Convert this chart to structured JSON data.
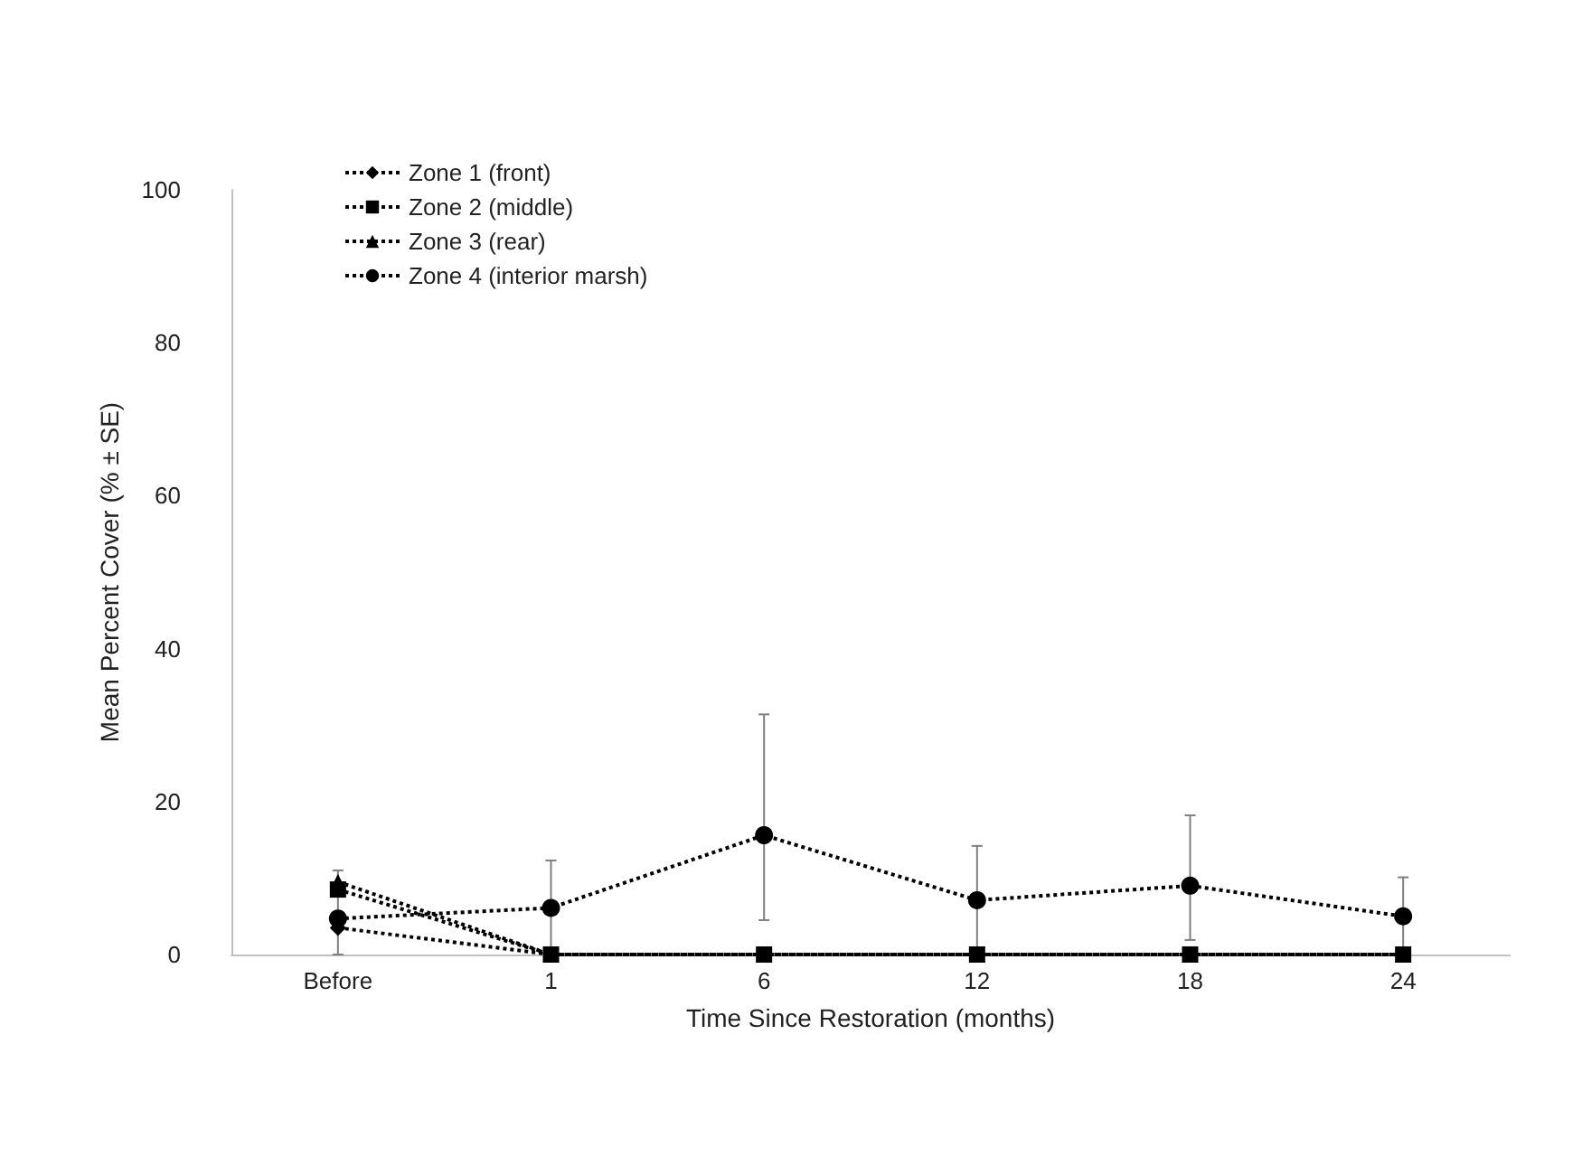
{
  "chart_data": {
    "type": "line",
    "xlabel": "Time Since Restoration (months)",
    "ylabel": "Mean Percent Cover (% ± SE)",
    "categories": [
      "Before",
      "1",
      "6",
      "12",
      "18",
      "24"
    ],
    "series": [
      {
        "name": "Zone 1 (front)",
        "color": "#000000",
        "marker": "diamond",
        "values": [
          3.5,
          0,
          0,
          0,
          0,
          0
        ]
      },
      {
        "name": "Zone 2 (middle)",
        "color": "#000000",
        "marker": "square",
        "values": [
          8.5,
          0,
          0,
          0,
          0,
          0
        ]
      },
      {
        "name": "Zone 3 (rear)",
        "color": "#000000",
        "marker": "triangle",
        "values": [
          9.5,
          0,
          0,
          0,
          0,
          0
        ]
      },
      {
        "name": "Zone 4 (interior marsh)",
        "color": "#000000",
        "marker": "circle",
        "values": [
          4.7,
          6.1,
          15.6,
          7.1,
          9.0,
          5.0
        ],
        "errors": [
          [
            0,
            11
          ],
          6.2,
          [
            4.5,
            31.4
          ],
          7.1,
          [
            1.9,
            18.2
          ],
          5.1
        ]
      }
    ],
    "ylim": [
      0,
      100
    ],
    "yticks": [
      0,
      20,
      40,
      60,
      80,
      100
    ],
    "grid": false,
    "legend": "top left",
    "line_style": "dotted"
  }
}
